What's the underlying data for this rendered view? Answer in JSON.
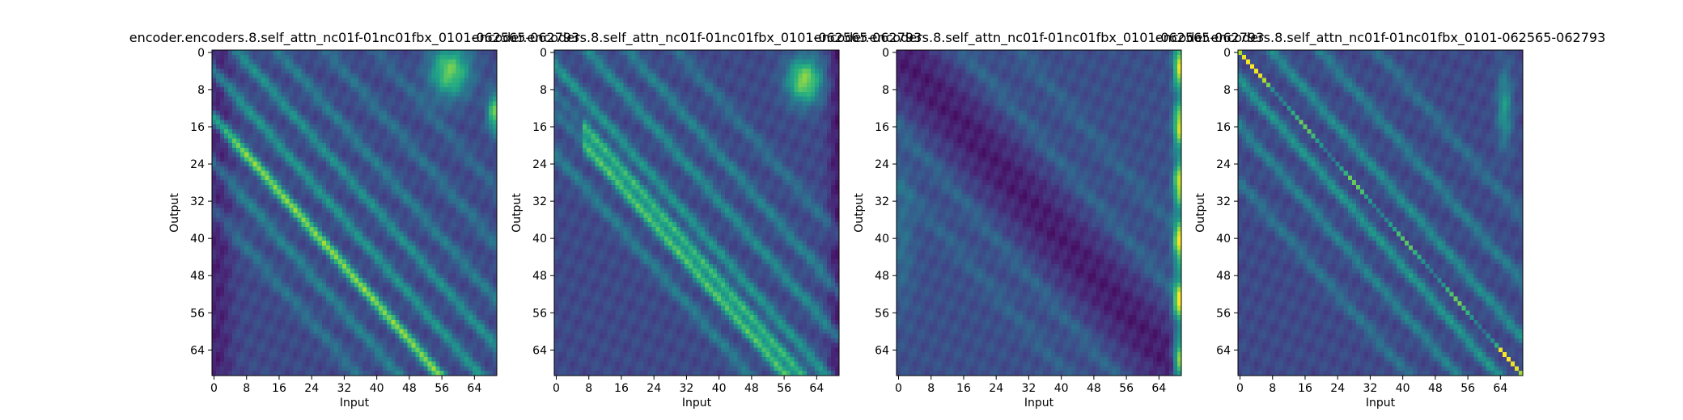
{
  "colors": {
    "colormap": "viridis",
    "background": "#ffffff",
    "axis": "#000000"
  },
  "chart_data": [
    {
      "type": "heatmap",
      "title": "encoder.encoders.8.self_attn_nc01f-01nc01fbx_0101-062565-062793",
      "xlabel": "Input",
      "ylabel": "Output",
      "xlim": [
        0,
        70
      ],
      "ylim": [
        70,
        0
      ],
      "x_ticks": [
        "0",
        "8",
        "16",
        "24",
        "32",
        "40",
        "48",
        "56",
        "64"
      ],
      "y_ticks": [
        "0",
        "8",
        "16",
        "24",
        "32",
        "40",
        "48",
        "56",
        "64"
      ],
      "grid": false,
      "colormap": "viridis",
      "pattern": "Diagonal attention bands offset from the main diagonal; brightest band running from (8,21) to (50,66); bright patches at input 55-62, output 0-10 and input ~68, output 10-15"
    },
    {
      "type": "heatmap",
      "title": "encoder.encoders.8.self_attn_nc01f-01nc01fbx_0101-062565-062793",
      "xlabel": "Input",
      "ylabel": "Output",
      "xlim": [
        0,
        70
      ],
      "ylim": [
        70,
        0
      ],
      "x_ticks": [
        "0",
        "8",
        "16",
        "24",
        "32",
        "40",
        "48",
        "56",
        "64"
      ],
      "y_ticks": [
        "0",
        "8",
        "16",
        "24",
        "32",
        "40",
        "48",
        "56",
        "64"
      ],
      "grid": false,
      "colormap": "viridis",
      "pattern": "Parallel diagonal bands; strongest bands starting near input 8 at outputs 14-24; bright patch at input 58-64, output 3-10"
    },
    {
      "type": "heatmap",
      "title": "encoder.encoders.8.self_attn_nc01f-01nc01fbx_0101-062565-062793",
      "xlabel": "Input",
      "ylabel": "Output",
      "xlim": [
        0,
        70
      ],
      "ylim": [
        70,
        0
      ],
      "x_ticks": [
        "0",
        "8",
        "16",
        "24",
        "32",
        "40",
        "48",
        "56",
        "64"
      ],
      "y_ticks": [
        "0",
        "8",
        "16",
        "24",
        "32",
        "40",
        "48",
        "56",
        "64"
      ],
      "grid": false,
      "colormap": "viridis",
      "pattern": "Dark band along main diagonal, faint parallel off-diagonal bands; bright column at input ~69"
    },
    {
      "type": "heatmap",
      "title": "encoder.encoders.8.self_attn_nc01f-01nc01fbx_0101-062565-062793",
      "xlabel": "Input",
      "ylabel": "Output",
      "xlim": [
        0,
        70
      ],
      "ylim": [
        70,
        0
      ],
      "x_ticks": [
        "0",
        "8",
        "16",
        "24",
        "32",
        "40",
        "48",
        "56",
        "64"
      ],
      "y_ticks": [
        "0",
        "8",
        "16",
        "24",
        "32",
        "40",
        "48",
        "56",
        "64"
      ],
      "grid": false,
      "colormap": "viridis",
      "pattern": "Sharp bright main diagonal from (0,0) to (69,69) with several fainter parallel off-diagonal bands"
    }
  ]
}
